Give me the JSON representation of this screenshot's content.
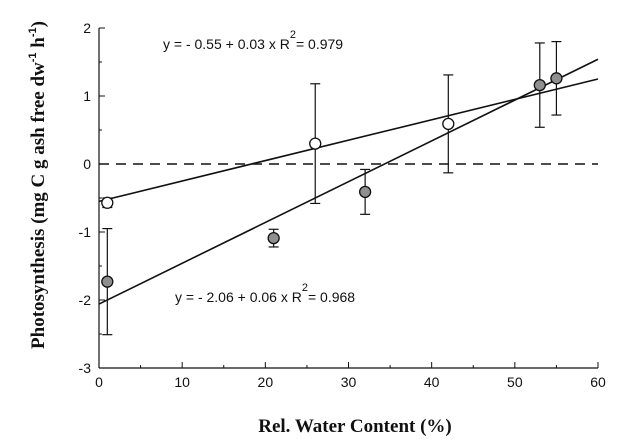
{
  "chart_data": {
    "type": "scatter",
    "xlabel": "Rel. Water Content (%)",
    "ylabel": "Photosynthesis (mg C g ash free dw",
    "ylabel_sup1": "-1",
    "ylabel_mid": " h",
    "ylabel_sup2": "-1",
    "ylabel_end": ")",
    "xlim": [
      0,
      60
    ],
    "ylim": [
      -3,
      2
    ],
    "xticks": [
      0,
      10,
      20,
      30,
      40,
      50,
      60
    ],
    "yticks": [
      -3,
      -2,
      -1,
      0,
      1,
      2
    ],
    "grid": false,
    "reference_line": {
      "y": 0,
      "style": "dashed"
    },
    "series": [
      {
        "marker": "open-circle",
        "points": [
          {
            "x": 1,
            "y": -0.57,
            "err": 0.07
          },
          {
            "x": 26,
            "y": 0.3,
            "err": 0.88
          },
          {
            "x": 42,
            "y": 0.59,
            "err": 0.72
          }
        ],
        "fit": {
          "intercept": -0.55,
          "slope": 0.03,
          "x_range": [
            0,
            60
          ]
        },
        "equation_parts": [
          "y =  - 0.55 + 0.03 x   R",
          "2",
          "= 0.979"
        ]
      },
      {
        "marker": "filled-circle",
        "points": [
          {
            "x": 1,
            "y": -1.73,
            "err": 0.78
          },
          {
            "x": 21,
            "y": -1.09,
            "err": 0.13
          },
          {
            "x": 32,
            "y": -0.41,
            "err": 0.33
          },
          {
            "x": 53,
            "y": 1.16,
            "err": 0.62
          },
          {
            "x": 55,
            "y": 1.26,
            "err": 0.54
          }
        ],
        "fit": {
          "intercept": -2.06,
          "slope": 0.06,
          "x_range": [
            0,
            60
          ]
        },
        "equation_parts": [
          "y =  - 2.06 + 0.06 x   R",
          "2",
          "= 0.968"
        ]
      }
    ]
  }
}
